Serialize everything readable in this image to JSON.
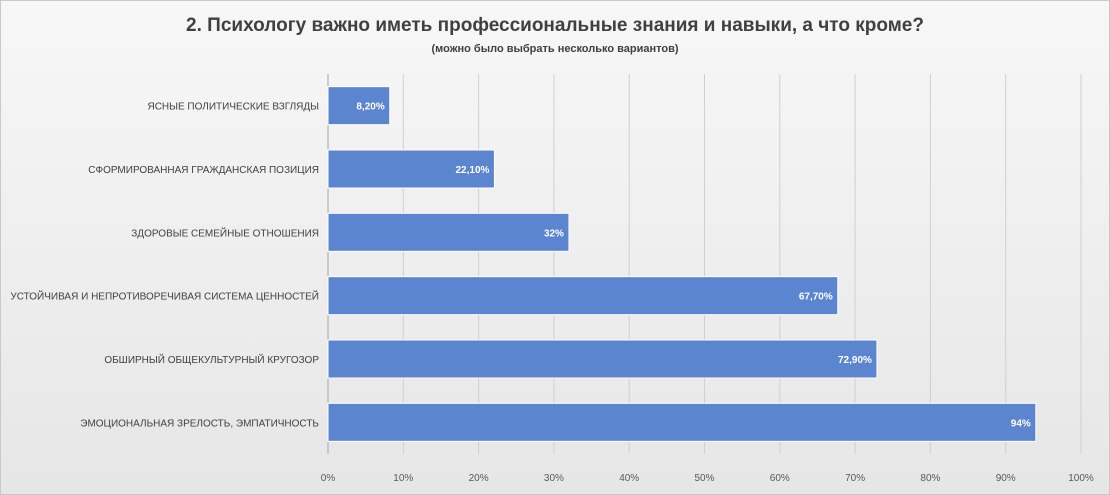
{
  "chart_data": {
    "type": "bar",
    "orientation": "horizontal",
    "title": "2. Психологу важно иметь профессиональные знания и навыки, а что кроме?",
    "subtitle": "(можно было выбрать несколько вариантов)",
    "categories": [
      "ЯСНЫЕ ПОЛИТИЧЕСКИЕ ВЗГЛЯДЫ",
      "СФОРМИРОВАННАЯ ГРАЖДАНСКАЯ ПОЗИЦИЯ",
      "ЗДОРОВЫЕ СЕМЕЙНЫЕ ОТНОШЕНИЯ",
      "УСТОЙЧИВАЯ И НЕПРОТИВОРЕЧИВАЯ СИСТЕМА ЦЕННОСТЕЙ",
      "ОБШИРНЫЙ ОБЩЕКУЛЬТУРНЫЙ КРУГОЗОР",
      "ЭМОЦИОНАЛЬНАЯ ЗРЕЛОСТЬ, ЭМПАТИЧНОСТЬ"
    ],
    "values": [
      8.2,
      22.1,
      32,
      67.7,
      72.9,
      94
    ],
    "data_labels": [
      "8,20%",
      "22,10%",
      "32%",
      "67,70%",
      "72,90%",
      "94%"
    ],
    "xlim": [
      0,
      100
    ],
    "x_ticks": [
      0,
      10,
      20,
      30,
      40,
      50,
      60,
      70,
      80,
      90,
      100
    ],
    "x_tick_labels": [
      "0%",
      "10%",
      "20%",
      "30%",
      "40%",
      "50%",
      "60%",
      "70%",
      "80%",
      "90%",
      "100%"
    ],
    "xlabel": "",
    "ylabel": "",
    "grid": "vertical",
    "legend": "none",
    "colors": {
      "bar": "#5b85cf",
      "bar_edge": "#ffffff",
      "grid": "#d0d0d0",
      "axis": "#a6a6a6",
      "text": "#404040"
    }
  }
}
